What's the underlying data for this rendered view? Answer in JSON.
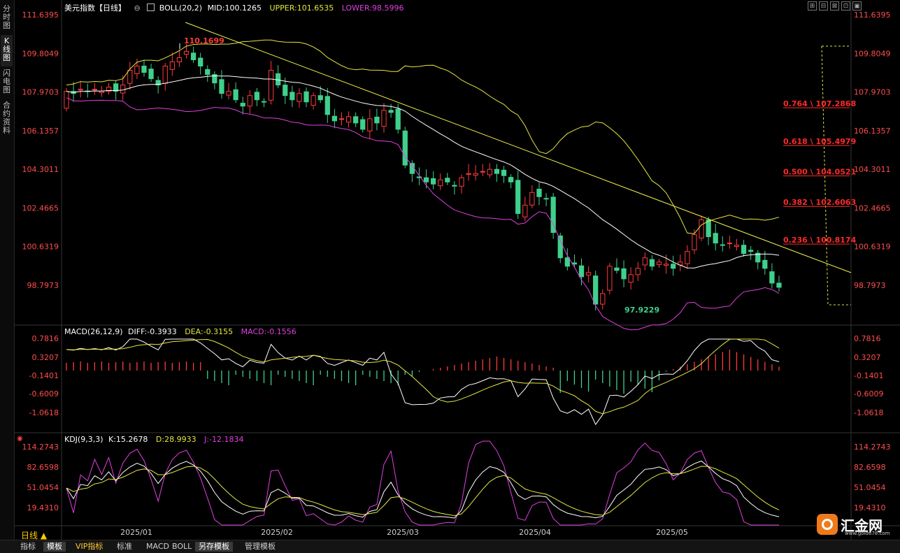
{
  "side_tabs": [
    {
      "label": "分时图",
      "active": false
    },
    {
      "label": "K线图",
      "active": true
    },
    {
      "label": "闪电图",
      "active": false
    },
    {
      "label": "合约资料",
      "active": false
    }
  ],
  "main_legend": {
    "title": "美元指数【日线】",
    "boll": "BOLL(20,2)",
    "mid": "MID:100.1265",
    "upper": "UPPER:101.6535",
    "lower": "LOWER:98.5996"
  },
  "macd_legend": {
    "title": "MACD(26,12,9)",
    "diff": "DIFF:-0.3933",
    "dea": "DEA:-0.3155",
    "macd": "MACD:-0.1556"
  },
  "kdj_legend": {
    "title": "KDJ(9,3,3)",
    "k": "K:15.2678",
    "d": "D:28.9933",
    "j": "J:-12.1834"
  },
  "price_axis": [
    "111.6395",
    "109.8049",
    "107.9703",
    "106.1357",
    "104.3011",
    "102.4665",
    "100.6319",
    "98.7973"
  ],
  "macd_axis": [
    "0.7816",
    "0.3207",
    "-0.1401",
    "-0.6009",
    "-1.0618"
  ],
  "kdj_axis": [
    "114.2743",
    "82.6598",
    "51.0454",
    "19.4310"
  ],
  "x_axis": [
    "2025/01",
    "2025/02",
    "2025/03",
    "2025/04",
    "2025/05"
  ],
  "annotations": {
    "high": "110.1699",
    "low": "97.9229"
  },
  "fib_levels": [
    {
      "label": "0.764 \\ 107.2868",
      "value": 107.2868
    },
    {
      "label": "0.618 \\ 105.4979",
      "value": 105.4979
    },
    {
      "label": "0.500 \\ 104.0521",
      "value": 104.0521
    },
    {
      "label": "0.382 \\ 102.6063",
      "value": 102.6063
    },
    {
      "label": "0.236 \\ 100.8174",
      "value": 100.8174
    }
  ],
  "period_label": "日线 ▲",
  "bottom_tabs": [
    {
      "label": "指标",
      "on": false,
      "vip": false
    },
    {
      "label": "模板",
      "on": true,
      "vip": false
    },
    {
      "label": "VIP指标",
      "on": false,
      "vip": true
    },
    {
      "label": "标准",
      "on": false,
      "vip": false
    },
    {
      "label": "MACD",
      "on": false,
      "vip": false
    },
    {
      "label": "BOLL",
      "on": false,
      "vip": false
    },
    {
      "label": "另存模板",
      "on": true,
      "vip": false
    },
    {
      "label": "管理模板",
      "on": false,
      "vip": false
    }
  ],
  "toolbar_icons": [
    "grid-icon",
    "grid-icon",
    "grid-icon",
    "grid-icon",
    "grid-icon"
  ],
  "logo": {
    "text": "汇金网",
    "url": "www.gold678.com"
  },
  "colors": {
    "up": "#ff3b3b",
    "down": "#3fd08c",
    "boll": "#e6e640",
    "mid": "#ffffff",
    "lower": "#e040e0",
    "fib": "#ff2a2a",
    "axis_text": "#ff4d4d"
  },
  "chart_data": {
    "type": "candlestick",
    "ylim": [
      97.5,
      112.2
    ],
    "candles_count": 104,
    "indicators": [
      "BOLL(20,2)",
      "MACD(26,12,9)",
      "KDJ(9,3,3)"
    ]
  }
}
